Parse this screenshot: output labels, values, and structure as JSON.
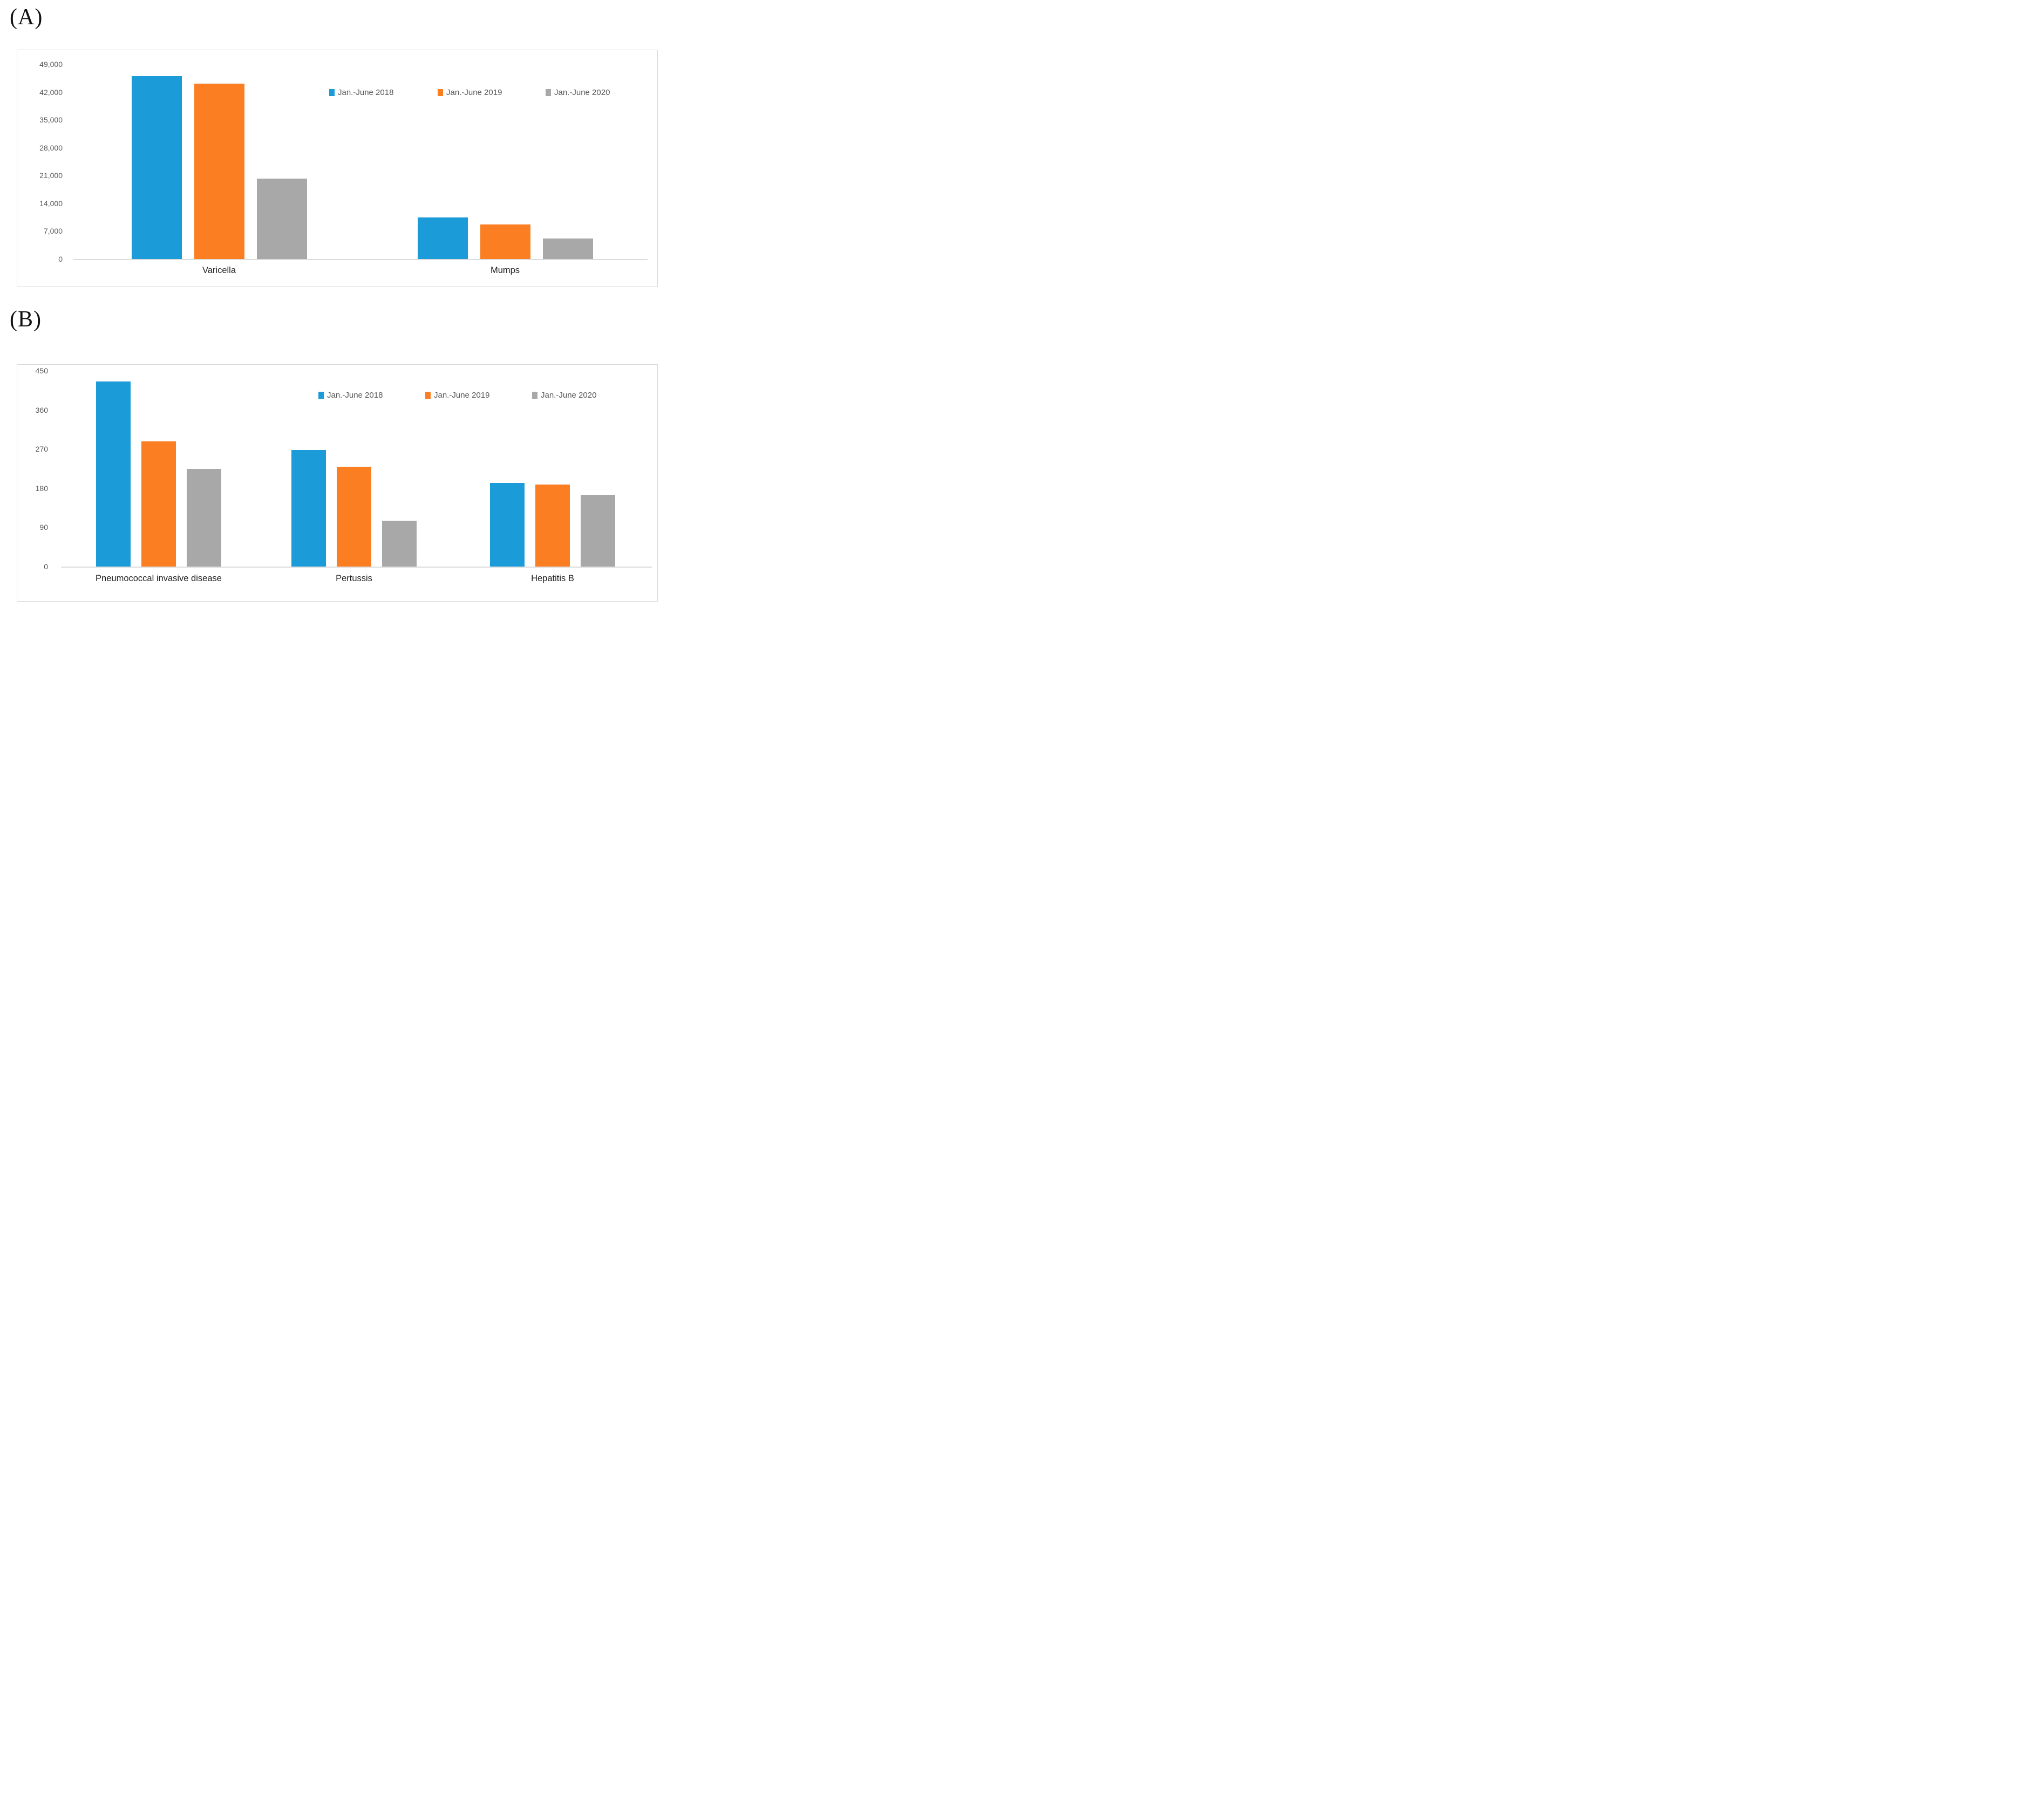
{
  "labels": {
    "panel_a": "(A)",
    "panel_b": "(B)"
  },
  "colors": {
    "series_2018": "#1B9CD9",
    "series_2019": "#FC7E23",
    "series_2020": "#A8A8A8",
    "axis_text": "#595959",
    "axis_line": "#DCDCDC",
    "panel_border": "#D9D9D9",
    "category_text": "#1F1F1F"
  },
  "chart_data": [
    {
      "id": "A",
      "type": "bar",
      "title": "",
      "categories": [
        "Varicella",
        "Mumps"
      ],
      "series": [
        {
          "name": "Jan.-June 2018",
          "color": "#1B9CD9",
          "values": [
            46000,
            10500
          ]
        },
        {
          "name": "Jan.-June 2019",
          "color": "#FC7E23",
          "values": [
            44100,
            8700
          ]
        },
        {
          "name": "Jan.-June 2020",
          "color": "#A8A8A8",
          "values": [
            20200,
            5200
          ]
        }
      ],
      "xlabel": "",
      "ylabel": "",
      "ylim": [
        0,
        49000
      ],
      "yticks": [
        0,
        7000,
        14000,
        21000,
        28000,
        35000,
        42000,
        49000
      ],
      "ytick_labels": [
        "0",
        "7,000",
        "14,000",
        "21,000",
        "28,000",
        "35,000",
        "42,000",
        "49,000"
      ],
      "grid": false,
      "legend_position": "top-right"
    },
    {
      "id": "B",
      "type": "bar",
      "title": "",
      "categories": [
        "Pneumococcal invasive disease",
        "Pertussis",
        "Hepatitis B"
      ],
      "series": [
        {
          "name": "Jan.-June 2018",
          "color": "#1B9CD9",
          "values": [
            425,
            268,
            192
          ]
        },
        {
          "name": "Jan.-June 2019",
          "color": "#FC7E23",
          "values": [
            288,
            230,
            188
          ]
        },
        {
          "name": "Jan.-June 2020",
          "color": "#A8A8A8",
          "values": [
            225,
            106,
            165
          ]
        }
      ],
      "xlabel": "",
      "ylabel": "",
      "ylim": [
        0,
        450
      ],
      "yticks": [
        0,
        90,
        180,
        270,
        360,
        450
      ],
      "ytick_labels": [
        "0",
        "90",
        "180",
        "270",
        "360",
        "450"
      ],
      "grid": false,
      "legend_position": "top-right"
    }
  ]
}
